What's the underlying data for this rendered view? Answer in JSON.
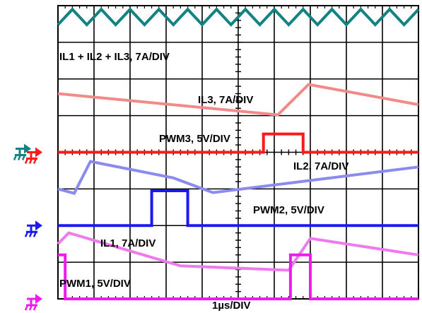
{
  "chart_data": {
    "type": "line",
    "title": "",
    "xlabel": "1µs/DIV",
    "grid": true,
    "divisions": {
      "x": 10,
      "y": 8
    },
    "series": [
      {
        "name": "IL1 + IL2 + IL3, 7A/DIV",
        "color": "#138282",
        "x": [
          0,
          0.4,
          0.8,
          1.2,
          1.6,
          2.0,
          2.4,
          2.8,
          3.2,
          3.6,
          4.0,
          4.4,
          4.8,
          5.2,
          5.6,
          6.0,
          6.4,
          6.8,
          7.2,
          7.6,
          8.0,
          8.4,
          8.8,
          9.2,
          9.6,
          10.0
        ],
        "y": [
          7.48,
          7.9,
          7.48,
          7.9,
          7.48,
          7.9,
          7.48,
          7.9,
          7.48,
          7.9,
          7.48,
          7.9,
          7.48,
          7.9,
          7.48,
          7.9,
          7.48,
          7.9,
          7.48,
          7.9,
          7.48,
          7.9,
          7.48,
          7.9,
          7.48,
          7.9
        ]
      },
      {
        "name": "IL3, 7A/DIV",
        "color": "#f28a8a",
        "x": [
          0,
          6.1,
          6.95,
          10.0
        ],
        "y": [
          5.6,
          5.02,
          5.85,
          5.3
        ]
      },
      {
        "name": "PWM3, 5V/DIV",
        "color": "#ff1a1a",
        "x": [
          0,
          5.7,
          5.7,
          6.8,
          6.8,
          10.0
        ],
        "y": [
          4.0,
          4.0,
          4.5,
          4.5,
          4.0,
          4.0
        ]
      },
      {
        "name": "IL2, 7A/DIV",
        "color": "#8a8af0",
        "x": [
          0,
          0.45,
          0.9,
          3.2,
          4.3,
          10.0
        ],
        "y": [
          3.0,
          2.88,
          3.75,
          3.3,
          2.9,
          3.6
        ]
      },
      {
        "name": "PWM2, 5V/DIV",
        "color": "#1a1aee",
        "x": [
          0,
          2.6,
          2.6,
          3.6,
          3.6,
          10.0
        ],
        "y": [
          2.0,
          2.0,
          2.95,
          2.95,
          2.0,
          2.0
        ]
      },
      {
        "name": "IL1, 7A/DIV",
        "color": "#ee7aee",
        "x": [
          0,
          0.3,
          3.4,
          6.4,
          7.0,
          10.0
        ],
        "y": [
          1.5,
          1.8,
          0.9,
          0.78,
          1.65,
          1.2
        ]
      },
      {
        "name": "PWM1, 5V/DIV",
        "color": "#ee1aee",
        "x": [
          0,
          0.2,
          0.2,
          6.45,
          6.45,
          7.0,
          7.0,
          10.0
        ],
        "y": [
          1.2,
          1.2,
          0.0,
          0.0,
          1.2,
          1.2,
          0.0,
          0.0
        ]
      }
    ],
    "ground_markers": [
      {
        "channel": "CH1",
        "color": "#138282",
        "y": 4.0
      },
      {
        "channel": "CH2",
        "color": "#ff1a1a",
        "y": 4.0
      },
      {
        "channel": "CH3",
        "color": "#1a1aee",
        "y": 2.0
      },
      {
        "channel": "CH4",
        "color": "#ee1aee",
        "y": 0.0
      }
    ]
  }
}
